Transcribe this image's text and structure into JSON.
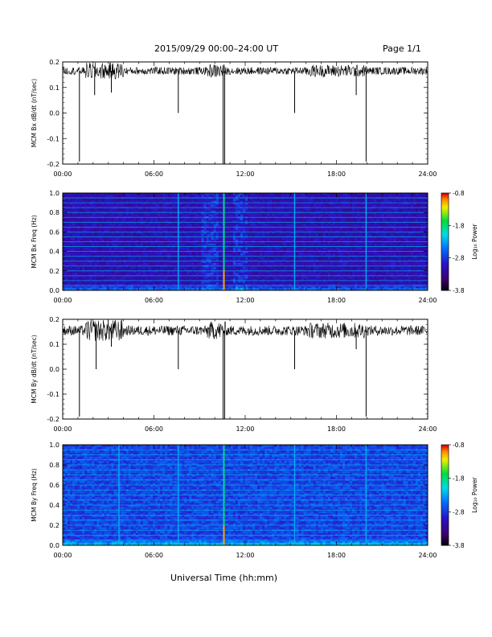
{
  "header": {
    "date_range": "2015/09/29   00:00–24:00 UT",
    "page": "Page 1/1"
  },
  "footer": {
    "xlabel": "Universal Time (hh:mm)"
  },
  "colors": {
    "trace": "#000000",
    "spectrogram_background": "#1a0a60",
    "axis": "#000000"
  },
  "colorbar": {
    "label": "Log₁₀ Power",
    "ticks": [
      "-0.8",
      "-1.8",
      "-2.8",
      "-3.8"
    ],
    "min": -3.8,
    "max": -0.8,
    "colormap": "rainbow (black→purple→blue→cyan→green→yellow→red)"
  },
  "chart_data": [
    {
      "type": "line",
      "ylabel": "MCM Bx dB/dt (nT/sec)",
      "xlim": [
        0,
        24
      ],
      "ylim": [
        -0.2,
        0.2
      ],
      "x_ticks": [
        "00:00",
        "06:00",
        "12:00",
        "18:00",
        "24:00"
      ],
      "y_ticks": [
        "0.2",
        "0.1",
        "0.0",
        "-0.1",
        "-0.2"
      ],
      "baseline": 0.165,
      "noise_amplitude": 0.015,
      "spikes": [
        {
          "x": 1.1,
          "y": -0.19
        },
        {
          "x": 2.1,
          "y": 0.07
        },
        {
          "x": 3.2,
          "y": 0.08
        },
        {
          "x": 7.6,
          "y": 0.0
        },
        {
          "x": 10.55,
          "y": -0.2
        },
        {
          "x": 10.65,
          "y": -0.2
        },
        {
          "x": 15.25,
          "y": 0.0
        },
        {
          "x": 19.3,
          "y": 0.07
        },
        {
          "x": 19.95,
          "y": -0.19
        }
      ]
    },
    {
      "type": "heatmap",
      "ylabel": "MCM Bx Freq (Hz)",
      "xlim": [
        0,
        24
      ],
      "ylim": [
        0,
        1.0
      ],
      "x_ticks": [
        "00:00",
        "06:00",
        "12:00",
        "18:00",
        "24:00"
      ],
      "y_ticks": [
        "1.0",
        "0.8",
        "0.6",
        "0.4",
        "0.2",
        "0.0"
      ],
      "harmonic_lines_hz": [
        0.05,
        0.1,
        0.15,
        0.2,
        0.25,
        0.3,
        0.35,
        0.4,
        0.45,
        0.5,
        0.55,
        0.6,
        0.65,
        0.7,
        0.75,
        0.8,
        0.85,
        0.9,
        0.95
      ],
      "vertical_events_hours": [
        7.6,
        10.6,
        15.25,
        19.95
      ],
      "strongest_event_hour": 10.6
    },
    {
      "type": "line",
      "ylabel": "MCM By dB/dt (nT/sec)",
      "xlim": [
        0,
        24
      ],
      "ylim": [
        -0.2,
        0.2
      ],
      "x_ticks": [
        "00:00",
        "06:00",
        "12:00",
        "18:00",
        "24:00"
      ],
      "y_ticks": [
        "0.2",
        "0.1",
        "0.0",
        "-0.1",
        "-0.2"
      ],
      "baseline": 0.155,
      "noise_amplitude": 0.02,
      "spikes": [
        {
          "x": 1.1,
          "y": -0.19
        },
        {
          "x": 2.2,
          "y": 0.0
        },
        {
          "x": 3.2,
          "y": 0.09
        },
        {
          "x": 7.6,
          "y": 0.0
        },
        {
          "x": 10.55,
          "y": -0.2
        },
        {
          "x": 10.65,
          "y": -0.2
        },
        {
          "x": 15.25,
          "y": 0.0
        },
        {
          "x": 19.3,
          "y": 0.08
        },
        {
          "x": 19.95,
          "y": -0.19
        }
      ]
    },
    {
      "type": "heatmap",
      "ylabel": "MCM By Freq (Hz)",
      "xlim": [
        0,
        24
      ],
      "ylim": [
        0,
        1.0
      ],
      "x_ticks": [
        "00:00",
        "06:00",
        "12:00",
        "18:00",
        "24:00"
      ],
      "y_ticks": [
        "1.0",
        "0.8",
        "0.6",
        "0.4",
        "0.2",
        "0.0"
      ],
      "harmonic_lines_hz": [
        0.05,
        0.1,
        0.15,
        0.2,
        0.25,
        0.3,
        0.35,
        0.4,
        0.45,
        0.5,
        0.55,
        0.6,
        0.65,
        0.7,
        0.75,
        0.8,
        0.85,
        0.9,
        0.95
      ],
      "vertical_events_hours": [
        3.7,
        7.6,
        10.6,
        15.25,
        19.95
      ],
      "strongest_event_hour": 10.6
    }
  ]
}
